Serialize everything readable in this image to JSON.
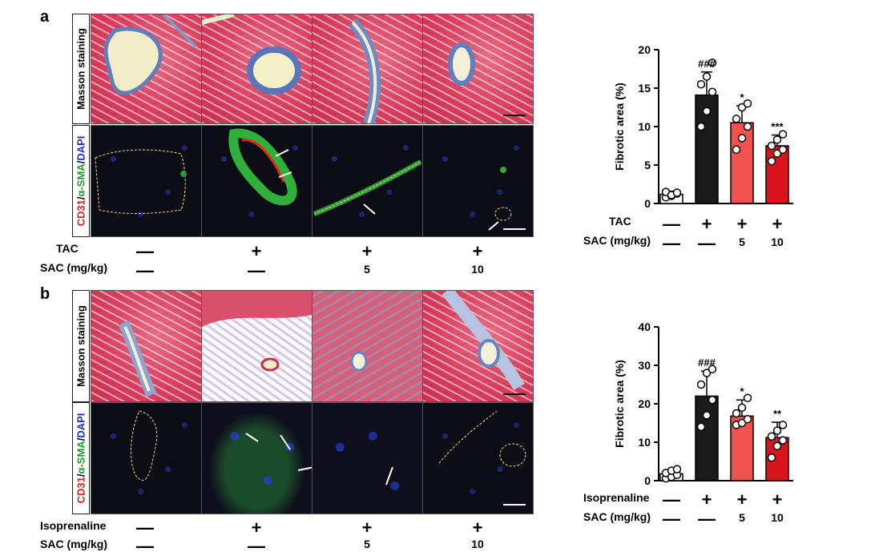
{
  "panels": [
    {
      "letter": "a",
      "masson_label": "Masson staining",
      "fluor_label": {
        "cd31": "CD31",
        "sep1": "/",
        "asma": "α-SMA",
        "sep2": "/",
        "dapi": "DAPI"
      },
      "row_labels": [
        "TAC",
        "SAC (mg/kg)"
      ],
      "rows": [
        [
          "—",
          "+",
          "+",
          "+"
        ],
        [
          "—",
          "—",
          "5",
          "10"
        ]
      ],
      "chart_rows": [
        [
          "—",
          "+",
          "+",
          "+"
        ],
        [
          "—",
          "—",
          "5",
          "10"
        ]
      ]
    },
    {
      "letter": "b",
      "masson_label": "Masson staining",
      "fluor_label": {
        "cd31": "CD31",
        "sep1": "/",
        "asma": "α-SMA",
        "sep2": "/",
        "dapi": "DAPI"
      },
      "row_labels": [
        "Isoprenaline",
        "SAC (mg/kg)"
      ],
      "rows": [
        [
          "—",
          "+",
          "+",
          "+"
        ],
        [
          "—",
          "—",
          "5",
          "10"
        ]
      ],
      "chart_rows": [
        [
          "—",
          "+",
          "+",
          "+"
        ],
        [
          "—",
          "—",
          "5",
          "10"
        ]
      ]
    }
  ],
  "chart_data": [
    {
      "type": "bar",
      "ylabel": "Fibrotic area (%)",
      "ylim": [
        0,
        20
      ],
      "yticks": [
        "0",
        "5",
        "10",
        "15",
        "20"
      ],
      "values": [
        1.2,
        14.1,
        10.5,
        7.5
      ],
      "errors": [
        0.4,
        3.0,
        2.2,
        1.4
      ],
      "points": [
        [
          0.8,
          1.0,
          1.3,
          1.5,
          1.1,
          1.4
        ],
        [
          10.0,
          12.0,
          14.5,
          15.5,
          16.5,
          18.3
        ],
        [
          7.0,
          8.5,
          10.0,
          11.0,
          12.5,
          13.0
        ],
        [
          5.5,
          6.5,
          7.0,
          7.5,
          8.3,
          9.0
        ]
      ],
      "colors": [
        "#ffffff",
        "#1a1a1a",
        "#ef5350",
        "#d8141e"
      ],
      "annotations": [
        "",
        "###",
        "*",
        "***"
      ]
    },
    {
      "type": "bar",
      "ylabel": "Fibrotic area (%)",
      "ylim": [
        0,
        40
      ],
      "yticks": [
        "0",
        "10",
        "20",
        "30",
        "40"
      ],
      "values": [
        1.8,
        22.0,
        16.8,
        11.2
      ],
      "errors": [
        1.0,
        6.5,
        4.2,
        4.0
      ],
      "points": [
        [
          0.6,
          1.0,
          1.5,
          2.0,
          2.6,
          3.0
        ],
        [
          14.0,
          17.0,
          21.0,
          25.0,
          28.0,
          29.0
        ],
        [
          14.5,
          15.0,
          16.0,
          17.5,
          19.0,
          21.5
        ],
        [
          6.0,
          9.0,
          10.5,
          11.5,
          13.0,
          14.5
        ]
      ],
      "colors": [
        "#ffffff",
        "#1a1a1a",
        "#ef5350",
        "#d8141e"
      ],
      "annotations": [
        "",
        "###",
        "*",
        "**"
      ]
    }
  ]
}
